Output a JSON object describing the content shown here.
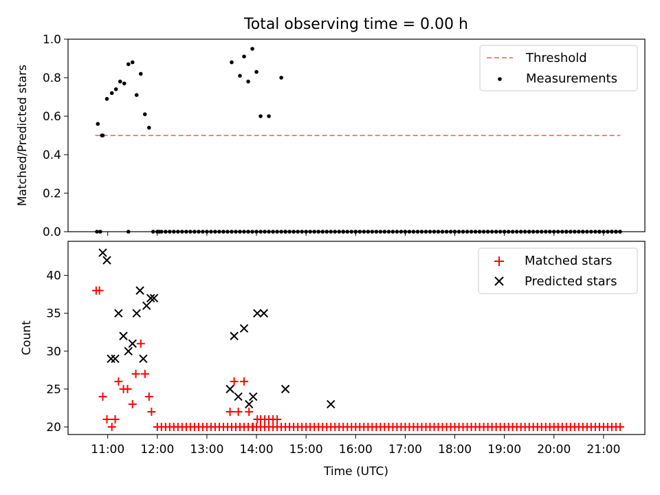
{
  "title": "Total observing time = 0.00 h",
  "colors": {
    "threshold": "#ff7f7f",
    "measurements": "#000000",
    "matched": "#ff0000",
    "predicted": "#000000"
  },
  "chart_data": [
    {
      "type": "scatter",
      "ylabel": "Matched/Predicted stars",
      "ylim": [
        0,
        1
      ],
      "yticks": [
        "0.0",
        "0.2",
        "0.4",
        "0.6",
        "0.8",
        "1.0"
      ],
      "legend": {
        "position": "top-right",
        "entries": [
          "Threshold",
          "Measurements"
        ]
      },
      "threshold": {
        "name": "Threshold",
        "value": 0.5,
        "x_start": "10:45",
        "x_end": "21:20"
      },
      "series": [
        {
          "name": "Measurements",
          "x": [
            "10:48",
            "10:53",
            "10:54",
            "10:59",
            "11:05",
            "11:10",
            "11:15",
            "11:20",
            "11:25",
            "11:30",
            "11:35",
            "11:40",
            "11:45",
            "11:50",
            "11:55",
            "10:47",
            "10:51",
            "11:25",
            "12:02",
            "13:30",
            "13:40",
            "13:45",
            "13:50",
            "13:55",
            "14:00",
            "14:05",
            "14:15",
            "14:30",
            "14:35",
            "15:45",
            "16:00",
            "17:00",
            "18:00",
            "19:00",
            "19:30",
            "20:15",
            "20:35",
            "20:55",
            "21:10",
            "21:15",
            "21:20"
          ],
          "y": [
            0.56,
            0.5,
            0.5,
            0.69,
            0.72,
            0.74,
            0.78,
            0.77,
            0.87,
            0.88,
            0.71,
            0.82,
            0.61,
            0.54,
            0,
            0,
            0,
            0,
            0,
            0.88,
            0.81,
            0.91,
            0.78,
            0.95,
            0.83,
            0.6,
            0.6,
            0.8,
            0,
            0,
            0,
            0,
            0,
            0,
            0,
            0,
            0,
            0,
            0,
            0,
            0
          ]
        }
      ]
    },
    {
      "type": "scatter",
      "xlabel": "Time (UTC)",
      "ylabel": "Count",
      "ylim": [
        19,
        44.5
      ],
      "yticks": [
        "20",
        "25",
        "30",
        "35",
        "40"
      ],
      "xticks": [
        "11:00",
        "12:00",
        "13:00",
        "14:00",
        "15:00",
        "16:00",
        "17:00",
        "18:00",
        "19:00",
        "20:00",
        "21:00"
      ],
      "legend": {
        "position": "top-right",
        "entries": [
          "Matched stars",
          "Predicted stars"
        ]
      },
      "series": [
        {
          "name": "Predicted stars",
          "x": [
            "10:54",
            "10:59",
            "11:04",
            "11:09",
            "11:13",
            "11:19",
            "11:25",
            "11:30",
            "11:35",
            "11:39",
            "11:43",
            "11:47",
            "11:52",
            "11:56",
            "13:28",
            "13:33",
            "13:38",
            "13:45",
            "13:51",
            "13:56",
            "14:01",
            "14:09",
            "14:35",
            "15:30"
          ],
          "y": [
            43,
            42,
            29,
            29,
            35,
            32,
            30,
            31,
            35,
            38,
            29,
            36,
            37,
            37,
            25,
            32,
            24,
            33,
            23,
            24,
            35,
            35,
            25,
            23
          ]
        },
        {
          "name": "Matched stars",
          "x": [
            "10:46",
            "10:50",
            "10:54",
            "10:59",
            "11:05",
            "11:09",
            "11:13",
            "11:19",
            "11:24",
            "11:30",
            "11:34",
            "11:40",
            "11:45",
            "11:50",
            "11:53",
            "13:28",
            "13:33",
            "13:38",
            "13:45",
            "13:51",
            "13:56",
            "14:01",
            "14:05",
            "14:10",
            "14:15",
            "14:20",
            "14:25"
          ],
          "y": [
            38,
            38,
            24,
            21,
            20,
            21,
            26,
            25,
            25,
            23,
            27,
            31,
            27,
            24,
            22,
            22,
            26,
            22,
            26,
            22,
            20,
            21,
            21,
            21,
            21,
            21,
            21
          ],
          "baseline_value": 20,
          "baseline_x_range": [
            "12:00",
            "21:20"
          ]
        }
      ]
    }
  ]
}
